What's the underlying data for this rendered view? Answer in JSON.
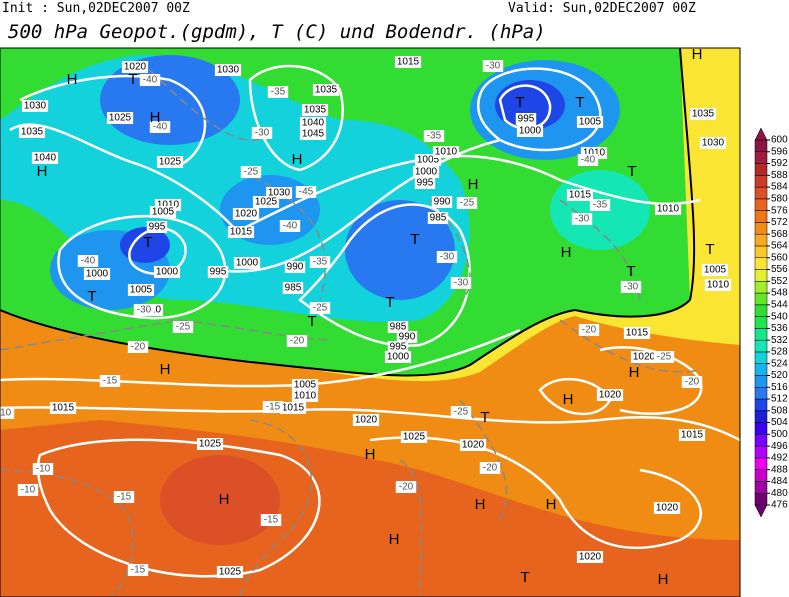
{
  "header": {
    "init": "Init : Sun,02DEC2007 00Z",
    "valid": "Valid: Sun,02DEC2007 00Z",
    "title": "500 hPa Geopot.(gpdm), T (C) und Bodendr. (hPa)"
  },
  "map": {
    "centers": [
      "H",
      "T",
      "H",
      "H",
      "T",
      "T",
      "H",
      "T",
      "T",
      "H",
      "T",
      "T",
      "T",
      "H",
      "T",
      "T",
      "T",
      "H",
      "H",
      "H",
      "T",
      "H",
      "H",
      "H",
      "H",
      "H",
      "T",
      "H",
      "H"
    ],
    "isobar_labels": [
      "1020",
      "1030",
      "1015",
      "1030",
      "1025",
      "1035",
      "1040",
      "1025",
      "1035",
      "1040",
      "1045",
      "1035",
      "1030",
      "1025",
      "1020",
      "1015",
      "1010",
      "1005",
      "995",
      "1000",
      "995",
      "1000",
      "990",
      "985",
      "1005",
      "1010",
      "1000",
      "995",
      "990",
      "985",
      "1000",
      "995",
      "1005",
      "1010",
      "1015",
      "1010",
      "1035",
      "1030",
      "1005",
      "1010",
      "1015",
      "1020",
      "1000",
      "1005",
      "1010",
      "985",
      "990",
      "995",
      "1000",
      "1005",
      "1010",
      "1015",
      "1015",
      "1020",
      "1025",
      "1025",
      "1020",
      "1020",
      "1015",
      "1020",
      "1025",
      "1020"
    ],
    "temperature_labels": [
      "-40",
      "-40",
      "-35",
      "-30",
      "-25",
      "-45",
      "-40",
      "-35",
      "-25",
      "-20",
      "-30",
      "-30",
      "-25",
      "-35",
      "-30",
      "-40",
      "-35",
      "-30",
      "-30",
      "-25",
      "-20",
      "-40",
      "-30",
      "-15",
      "-15",
      "-10",
      "-10",
      "-10",
      "-15",
      "-15",
      "-15",
      "-20",
      "-20",
      "-25",
      "-20",
      "-20",
      "-25"
    ]
  },
  "colorbar": {
    "ticks": [
      476,
      480,
      484,
      488,
      492,
      496,
      500,
      504,
      508,
      512,
      516,
      520,
      524,
      528,
      532,
      536,
      540,
      544,
      548,
      552,
      556,
      560,
      564,
      568,
      572,
      576,
      580,
      584,
      588,
      592,
      596,
      600
    ],
    "colors": [
      "#700070",
      "#a000a0",
      "#c800c8",
      "#f000f0",
      "#b400ff",
      "#7800ff",
      "#3c00f0",
      "#1e1ed2",
      "#1e46e6",
      "#2878f0",
      "#1e96f0",
      "#14b4f0",
      "#14d2dc",
      "#14e6b4",
      "#14e68c",
      "#1ee650",
      "#32dc32",
      "#64e628",
      "#a0f028",
      "#e6f028",
      "#fae632",
      "#fac828",
      "#faaa1e",
      "#f08c14",
      "#f07814",
      "#e6641e",
      "#dc5028",
      "#c83c28",
      "#b42828",
      "#a01e3c",
      "#8c1446"
    ]
  }
}
